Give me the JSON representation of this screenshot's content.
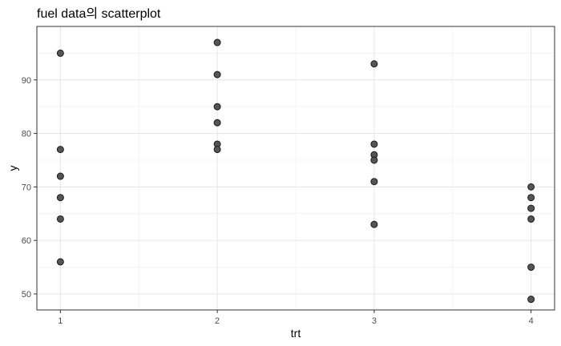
{
  "chart_data": {
    "type": "scatter",
    "title": "fuel data의 scatterplot",
    "xlabel": "trt",
    "ylabel": "y",
    "xlim": [
      0.85,
      4.15
    ],
    "ylim": [
      47,
      100
    ],
    "x_ticks": [
      1,
      2,
      3,
      4
    ],
    "x_minor_ticks": [
      1.5,
      2.5,
      3.5
    ],
    "y_ticks": [
      50,
      60,
      70,
      80,
      90
    ],
    "y_minor_ticks": [
      55,
      65,
      75,
      85,
      95
    ],
    "grid": true,
    "x": [
      1,
      1,
      1,
      1,
      1,
      1,
      2,
      2,
      2,
      2,
      2,
      2,
      3,
      3,
      3,
      3,
      3,
      3,
      4,
      4,
      4,
      4,
      4,
      4
    ],
    "y": [
      95,
      77,
      72,
      68,
      64,
      56,
      97,
      91,
      85,
      82,
      78,
      77,
      93,
      78,
      76,
      75,
      71,
      63,
      70,
      68,
      66,
      64,
      55,
      49
    ],
    "point_color": "#555555"
  }
}
